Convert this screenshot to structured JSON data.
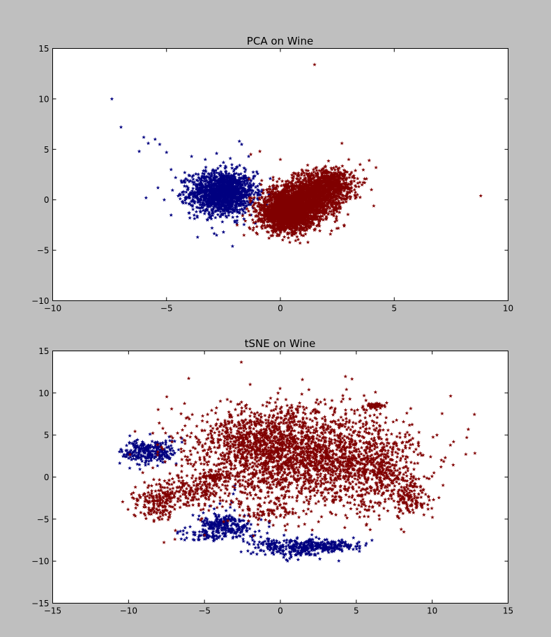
{
  "colors": {
    "background": "#bfbfbf",
    "class_a": "#000080",
    "class_b": "#800000"
  },
  "chart_data": [
    {
      "type": "scatter",
      "title": "PCA on Wine",
      "xlabel": "",
      "ylabel": "",
      "xlim": [
        -10,
        10
      ],
      "ylim": [
        -10,
        15
      ],
      "xticks": [
        -10,
        -5,
        0,
        5,
        10
      ],
      "yticks": [
        -10,
        -5,
        0,
        5,
        10,
        15
      ],
      "xtick_labels": [
        "−10",
        "−5",
        "0",
        "5",
        "10"
      ],
      "ytick_labels": [
        "−10",
        "−5",
        "0",
        "5",
        "10",
        "15"
      ],
      "grid": false,
      "marker": "star",
      "series": [
        {
          "color": "#000080",
          "points": [
            [
              -7.4,
              10.0
            ],
            [
              -7.0,
              7.2
            ],
            [
              -6.2,
              4.8
            ],
            [
              -6.0,
              6.2
            ],
            [
              -5.8,
              5.6
            ],
            [
              -5.5,
              6.0
            ],
            [
              -5.3,
              5.5
            ],
            [
              -5.0,
              4.7
            ],
            [
              -5.1,
              0.0
            ],
            [
              -5.9,
              0.2
            ],
            [
              -4.8,
              3.0
            ],
            [
              -4.4,
              0.1
            ],
            [
              -4.2,
              2.7
            ],
            [
              -4.0,
              1.8
            ],
            [
              -3.9,
              4.3
            ],
            [
              -3.3,
              4.0
            ],
            [
              -2.8,
              4.6
            ],
            [
              -2.5,
              3.7
            ],
            [
              -2.2,
              4.1
            ],
            [
              -1.8,
              5.8
            ],
            [
              -1.7,
              5.5
            ],
            [
              -3.5,
              -1.2
            ],
            [
              -3.0,
              -2.8
            ],
            [
              -2.8,
              -3.5
            ],
            [
              -2.5,
              -3.2
            ],
            [
              -2.1,
              -4.6
            ],
            [
              -2.0,
              -2.2
            ],
            [
              -1.6,
              -1.9
            ],
            [
              -1.3,
              1.9
            ],
            [
              -1.0,
              2.6
            ],
            [
              -0.9,
              0.5
            ],
            [
              -3.8,
              -0.2
            ],
            [
              -3.6,
              1.0
            ],
            [
              -1.2,
              -0.8
            ],
            [
              -4.6,
              2.2
            ],
            [
              -3.2,
              -2.0
            ]
          ],
          "clusters": [
            {
              "center": [
                -2.55,
                0.7
              ],
              "spread": [
                0.7,
                1.05
              ],
              "count": 1500
            }
          ]
        },
        {
          "color": "#800000",
          "points": [
            [
              1.5,
              13.4
            ],
            [
              8.8,
              0.4
            ],
            [
              2.7,
              5.6
            ],
            [
              3.5,
              3.5
            ],
            [
              4.0,
              1.0
            ],
            [
              4.2,
              3.2
            ],
            [
              3.9,
              3.9
            ],
            [
              3.0,
              4.0
            ],
            [
              -0.9,
              4.8
            ],
            [
              0.0,
              4.0
            ],
            [
              2.2,
              -3.4
            ],
            [
              1.5,
              -3.0
            ],
            [
              -0.5,
              -3.8
            ],
            [
              -1.2,
              -3.0
            ],
            [
              -1.9,
              -2.5
            ],
            [
              -1.3,
              4.5
            ],
            [
              3.7,
              1.7
            ],
            [
              4.1,
              -0.6
            ],
            [
              2.8,
              -2.5
            ],
            [
              -1.6,
              -3.5
            ]
          ],
          "clusters": [
            {
              "center": [
                0.3,
                -1.3
              ],
              "spread": [
                0.55,
                0.85
              ],
              "count": 2100
            },
            {
              "center": [
                1.05,
                -0.1
              ],
              "spread": [
                0.75,
                1.0
              ],
              "count": 1400
            },
            {
              "center": [
                2.0,
                1.5
              ],
              "spread": [
                0.6,
                0.8
              ],
              "count": 800
            }
          ]
        }
      ]
    },
    {
      "type": "scatter",
      "title": "tSNE on Wine",
      "xlabel": "",
      "ylabel": "",
      "xlim": [
        -15,
        15
      ],
      "ylim": [
        -15,
        15
      ],
      "xticks": [
        -15,
        -10,
        -5,
        0,
        5,
        10,
        15
      ],
      "yticks": [
        -15,
        -10,
        -5,
        0,
        5,
        10,
        15
      ],
      "xtick_labels": [
        "−15",
        "−10",
        "−5",
        "0",
        "5",
        "10",
        "15"
      ],
      "ytick_labels": [
        "−15",
        "−10",
        "−5",
        "0",
        "5",
        "10",
        "15"
      ],
      "grid": false,
      "marker": "star",
      "series": [
        {
          "color": "#000080",
          "points": [
            [
              -3.0,
              -1.0
            ],
            [
              -3.0,
              -1.5
            ],
            [
              -3.1,
              -2.0
            ],
            [
              -3.2,
              -3.0
            ],
            [
              -3.3,
              -3.6
            ]
          ],
          "clusters": [
            {
              "center": [
                -8.6,
                3.0
              ],
              "spread": [
                0.9,
                0.75
              ],
              "count": 280
            },
            {
              "center": [
                -3.6,
                -5.8
              ],
              "spread": [
                0.9,
                0.7
              ],
              "count": 240
            },
            {
              "center": [
                -4.8,
                -6.9
              ],
              "spread": [
                0.9,
                0.35
              ],
              "count": 60
            },
            {
              "center": [
                0.6,
                -8.4
              ],
              "spread": [
                1.2,
                0.55
              ],
              "count": 240
            },
            {
              "center": [
                3.2,
                -8.2
              ],
              "spread": [
                1.0,
                0.35
              ],
              "count": 180
            }
          ]
        },
        {
          "color": "#800000",
          "points": [
            [
              -6.1,
              7.1
            ],
            [
              -6.0,
              6.9
            ],
            [
              -6.2,
              7.0
            ],
            [
              -1.5,
              -4.3
            ],
            [
              -1.3,
              -4.1
            ],
            [
              3.4,
              9.1
            ],
            [
              0.3,
              -5.8
            ],
            [
              2.1,
              -6.3
            ],
            [
              1.6,
              -5.6
            ],
            [
              -5.0,
              -6.9
            ],
            [
              9.8,
              -0.2
            ],
            [
              8.8,
              3.0
            ]
          ],
          "clusters": [
            {
              "center": [
                1.5,
                2.5
              ],
              "spread": [
                3.5,
                2.9
              ],
              "count": 2200
            },
            {
              "center": [
                -1.5,
                4.5
              ],
              "spread": [
                2.0,
                1.8
              ],
              "count": 400
            },
            {
              "center": [
                6.5,
                0.5
              ],
              "spread": [
                1.4,
                2.2
              ],
              "count": 350
            },
            {
              "center": [
                8.5,
                -2.5
              ],
              "spread": [
                0.5,
                1.0
              ],
              "count": 120
            },
            {
              "center": [
                -8.0,
                -3.0
              ],
              "spread": [
                0.8,
                1.2
              ],
              "count": 180
            },
            {
              "center": [
                -6.6,
                -1.5
              ],
              "spread": [
                0.8,
                0.8
              ],
              "count": 90
            },
            {
              "center": [
                -5.0,
                -2.0
              ],
              "spread": [
                0.8,
                1.1
              ],
              "count": 80
            },
            {
              "center": [
                -4.2,
                0.0
              ],
              "spread": [
                0.5,
                0.25
              ],
              "count": 60
            },
            {
              "center": [
                6.2,
                8.5
              ],
              "spread": [
                0.3,
                0.15
              ],
              "count": 40
            },
            {
              "center": [
                -0.4,
                -4.3
              ],
              "spread": [
                1.2,
                0.5
              ],
              "count": 60
            }
          ]
        }
      ]
    }
  ]
}
